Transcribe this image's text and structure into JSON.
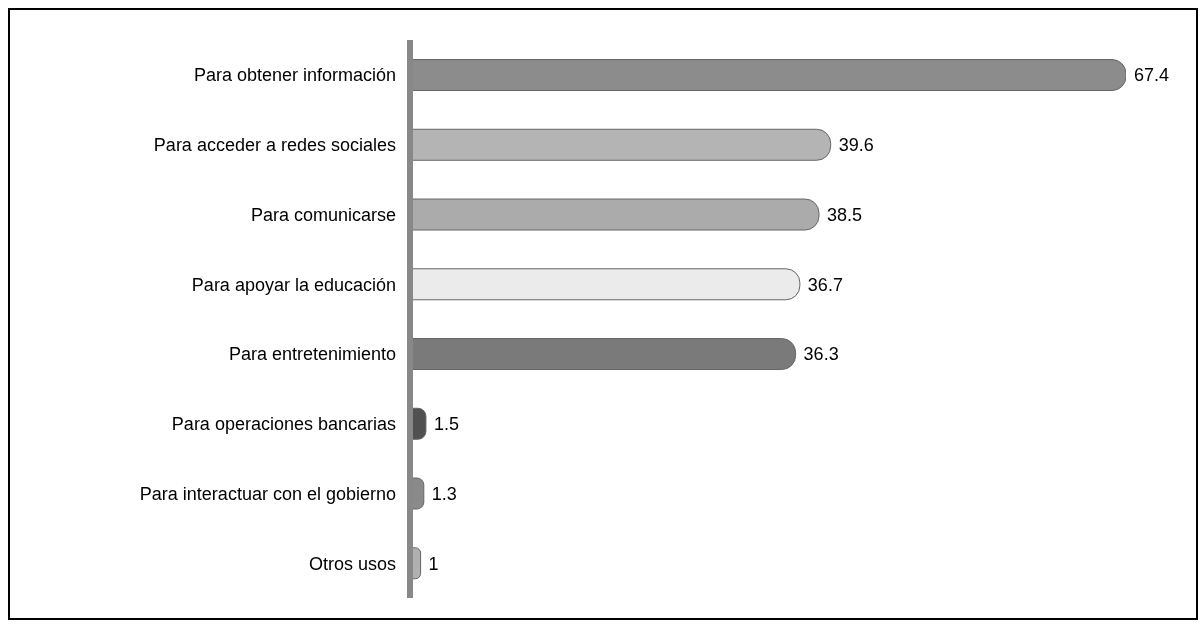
{
  "chart_data": {
    "type": "bar",
    "orientation": "horizontal",
    "categories": [
      "Para obtener información",
      "Para acceder a redes sociales",
      "Para comunicarse",
      "Para apoyar la educación",
      "Para entretenimiento",
      "Para operaciones bancarias",
      "Para interactuar con el gobierno",
      "Otros usos"
    ],
    "values": [
      67.4,
      39.6,
      38.5,
      36.7,
      36.3,
      1.5,
      1.3,
      1
    ],
    "colors": [
      "#8c8c8c",
      "#b4b4b4",
      "#ababab",
      "#ebebeb",
      "#7a7a7a",
      "#505050",
      "#8a8a8a",
      "#b0b0b0"
    ],
    "data_labels": true
  }
}
